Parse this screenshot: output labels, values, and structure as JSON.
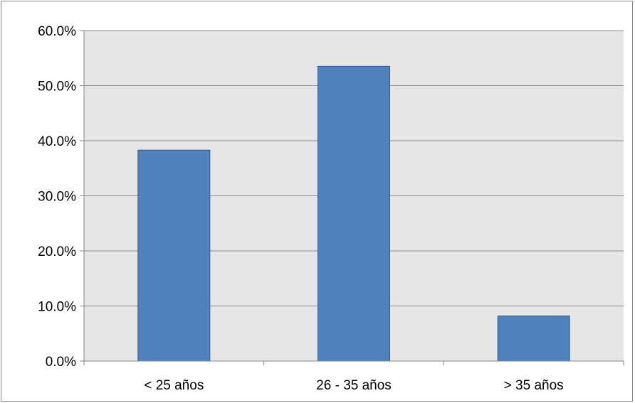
{
  "chart_data": {
    "type": "bar",
    "categories": [
      "< 25 años",
      "26 - 35 años",
      "> 35 años"
    ],
    "values": [
      38.3,
      53.5,
      8.2
    ],
    "y_ticks": [
      "0.0%",
      "10.0%",
      "20.0%",
      "30.0%",
      "40.0%",
      "50.0%",
      "60.0%"
    ],
    "ylim": [
      0,
      60
    ],
    "value_format": "percent",
    "grid": true,
    "legend": "none",
    "colors": {
      "bar_fill": "#4F81BD",
      "bar_stroke": "#385D8A",
      "plot_background": "#E6E6E6",
      "gridline": "#8C8C8C",
      "axis": "#868686"
    }
  }
}
